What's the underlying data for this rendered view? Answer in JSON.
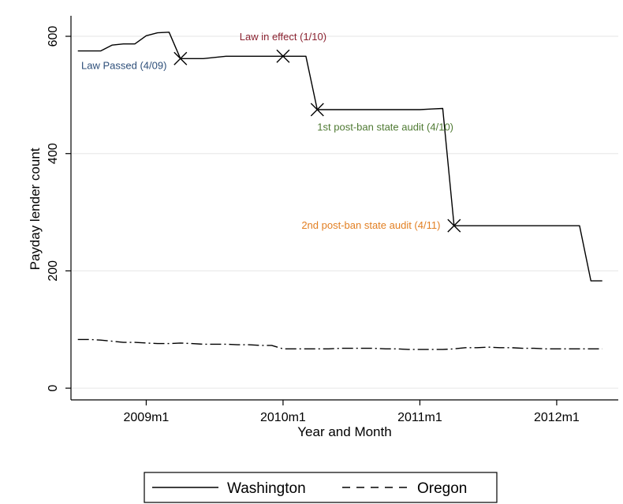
{
  "chart_data": {
    "type": "line",
    "title": "",
    "xlabel": "Year and Month",
    "ylabel": "Payday lender count",
    "xlim": [
      2008.45,
      2012.45
    ],
    "ylim": [
      -20,
      635
    ],
    "x_ticks": [
      {
        "value": 2009,
        "label": "2009m1"
      },
      {
        "value": 2010,
        "label": "2010m1"
      },
      {
        "value": 2011,
        "label": "2011m1"
      },
      {
        "value": 2012,
        "label": "2012m1"
      }
    ],
    "y_ticks": [
      {
        "value": 0,
        "label": "0"
      },
      {
        "value": 200,
        "label": "200"
      },
      {
        "value": 400,
        "label": "400"
      },
      {
        "value": 600,
        "label": "600"
      }
    ],
    "grid": true,
    "legend_position": "bottom",
    "series": [
      {
        "name": "Washington",
        "style": "solid",
        "color": "#000000",
        "points": [
          [
            2008.5,
            575
          ],
          [
            2008.583,
            575
          ],
          [
            2008.667,
            575
          ],
          [
            2008.75,
            585
          ],
          [
            2008.833,
            587
          ],
          [
            2008.917,
            587
          ],
          [
            2009.0,
            601
          ],
          [
            2009.083,
            606
          ],
          [
            2009.167,
            607
          ],
          [
            2009.25,
            562
          ],
          [
            2009.333,
            562
          ],
          [
            2009.417,
            562
          ],
          [
            2009.5,
            564
          ],
          [
            2009.583,
            566
          ],
          [
            2009.667,
            566
          ],
          [
            2009.75,
            566
          ],
          [
            2009.833,
            566
          ],
          [
            2009.917,
            566
          ],
          [
            2010.0,
            566
          ],
          [
            2010.083,
            566
          ],
          [
            2010.167,
            566
          ],
          [
            2010.25,
            475
          ],
          [
            2010.333,
            475
          ],
          [
            2010.417,
            475
          ],
          [
            2010.5,
            475
          ],
          [
            2010.583,
            475
          ],
          [
            2010.667,
            475
          ],
          [
            2010.75,
            475
          ],
          [
            2010.833,
            475
          ],
          [
            2010.917,
            475
          ],
          [
            2011.0,
            475
          ],
          [
            2011.083,
            476
          ],
          [
            2011.167,
            477
          ],
          [
            2011.25,
            277
          ],
          [
            2011.333,
            277
          ],
          [
            2011.417,
            277
          ],
          [
            2011.5,
            277
          ],
          [
            2011.583,
            277
          ],
          [
            2011.667,
            277
          ],
          [
            2011.75,
            277
          ],
          [
            2011.833,
            277
          ],
          [
            2011.917,
            277
          ],
          [
            2012.0,
            277
          ],
          [
            2012.083,
            277
          ],
          [
            2012.167,
            277
          ],
          [
            2012.25,
            183
          ],
          [
            2012.333,
            183
          ]
        ]
      },
      {
        "name": "Oregon",
        "style": "dashed",
        "color": "#000000",
        "points": [
          [
            2008.5,
            83
          ],
          [
            2008.583,
            83
          ],
          [
            2008.667,
            82
          ],
          [
            2008.75,
            80
          ],
          [
            2008.833,
            78
          ],
          [
            2008.917,
            78
          ],
          [
            2009.0,
            77
          ],
          [
            2009.083,
            76
          ],
          [
            2009.167,
            76
          ],
          [
            2009.25,
            77
          ],
          [
            2009.333,
            76
          ],
          [
            2009.417,
            75
          ],
          [
            2009.5,
            75
          ],
          [
            2009.583,
            75
          ],
          [
            2009.667,
            74
          ],
          [
            2009.75,
            74
          ],
          [
            2009.833,
            73
          ],
          [
            2009.917,
            73
          ],
          [
            2010.0,
            67
          ],
          [
            2010.083,
            67
          ],
          [
            2010.167,
            67
          ],
          [
            2010.25,
            67
          ],
          [
            2010.333,
            67
          ],
          [
            2010.417,
            68
          ],
          [
            2010.5,
            68
          ],
          [
            2010.583,
            68
          ],
          [
            2010.667,
            68
          ],
          [
            2010.75,
            67
          ],
          [
            2010.833,
            67
          ],
          [
            2010.917,
            66
          ],
          [
            2011.0,
            66
          ],
          [
            2011.083,
            66
          ],
          [
            2011.167,
            66
          ],
          [
            2011.25,
            67
          ],
          [
            2011.333,
            69
          ],
          [
            2011.417,
            69
          ],
          [
            2011.5,
            70
          ],
          [
            2011.583,
            69
          ],
          [
            2011.667,
            69
          ],
          [
            2011.75,
            68
          ],
          [
            2011.833,
            68
          ],
          [
            2011.917,
            67
          ],
          [
            2012.0,
            67
          ],
          [
            2012.083,
            67
          ],
          [
            2012.167,
            67
          ],
          [
            2012.25,
            67
          ],
          [
            2012.333,
            67
          ]
        ]
      }
    ],
    "markers": [
      {
        "x": 2009.25,
        "y": 562
      },
      {
        "x": 2010.0,
        "y": 566
      },
      {
        "x": 2010.25,
        "y": 475
      },
      {
        "x": 2011.25,
        "y": 277
      }
    ],
    "annotations": [
      {
        "text": "Law Passed (4/09)",
        "color": "#2e4f7a",
        "x": 2009.15,
        "y": 544,
        "anchor": "end"
      },
      {
        "text": "Law in effect (1/10)",
        "color": "#8b2331",
        "x": 2010.0,
        "y": 593,
        "anchor": "middle"
      },
      {
        "text": "1st post-ban state audit (4/10)",
        "color": "#4f7a33",
        "x": 2010.25,
        "y": 439,
        "anchor": "start"
      },
      {
        "text": "2nd post-ban state audit (4/11)",
        "color": "#e27f22",
        "x": 2011.15,
        "y": 272,
        "anchor": "end"
      }
    ]
  }
}
